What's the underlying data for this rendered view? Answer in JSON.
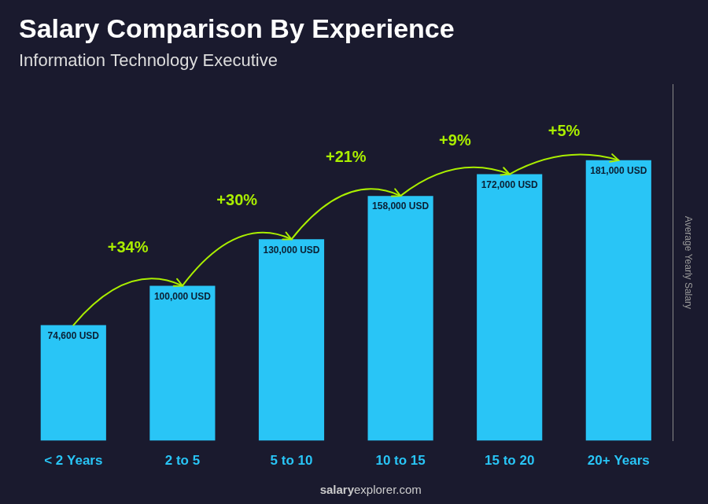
{
  "chart_data": {
    "type": "bar",
    "title": "Salary Comparison By Experience",
    "subtitle": "Information Technology Executive",
    "ylabel": "Average Yearly Salary",
    "categories": [
      "< 2 Years",
      "2 to 5",
      "5 to 10",
      "10 to 15",
      "15 to 20",
      "20+ Years"
    ],
    "values": [
      74600,
      100000,
      130000,
      158000,
      172000,
      181000
    ],
    "value_labels": [
      "74,600 USD",
      "100,000 USD",
      "130,000 USD",
      "158,000 USD",
      "172,000 USD",
      "181,000 USD"
    ],
    "data_labels": true,
    "color": "#29c5f6",
    "annotations": [
      "+34%",
      "+30%",
      "+21%",
      "+9%",
      "+5%"
    ],
    "source": [
      "salary",
      "explorer.com"
    ],
    "ylim": [
      0,
      230000
    ],
    "grid": false,
    "tick_labels": "x"
  }
}
